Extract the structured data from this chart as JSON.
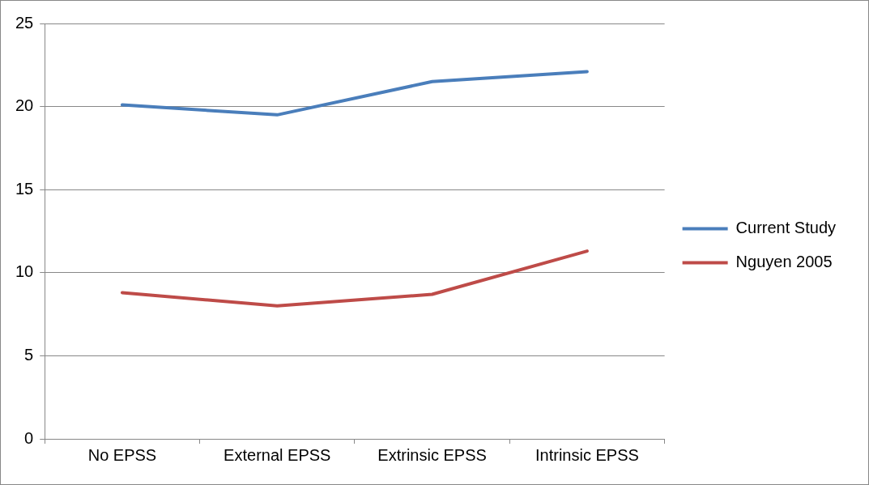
{
  "chart_data": {
    "type": "line",
    "categories": [
      "No EPSS",
      "External EPSS",
      "Extrinsic EPSS",
      "Intrinsic EPSS"
    ],
    "series": [
      {
        "name": "Current Study",
        "color": "#4a7ebb",
        "values": [
          20.1,
          19.5,
          21.5,
          22.1
        ]
      },
      {
        "name": "Nguyen 2005",
        "color": "#be4b48",
        "values": [
          8.8,
          8.0,
          8.7,
          11.3
        ]
      }
    ],
    "ylim": [
      0,
      25
    ],
    "yticks": [
      0,
      5,
      10,
      15,
      20,
      25
    ],
    "grid": "y",
    "legend": "right",
    "marker": "none",
    "line_style": "solid"
  }
}
